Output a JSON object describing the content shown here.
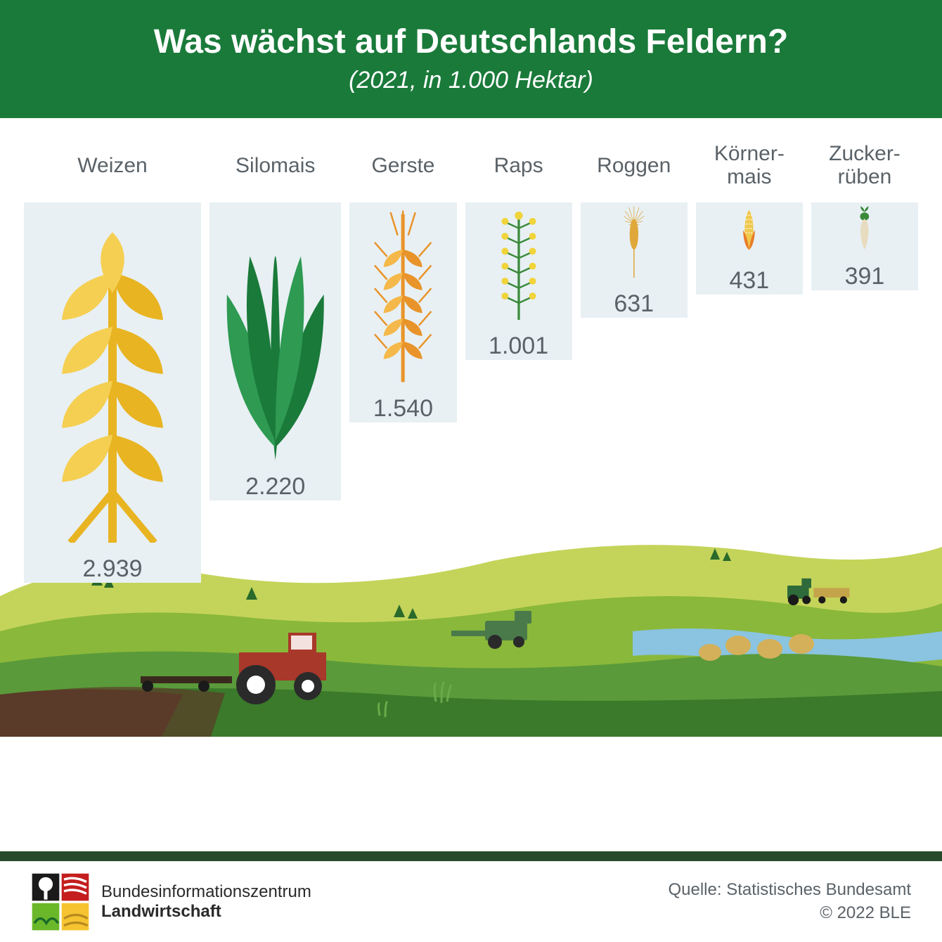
{
  "header": {
    "title": "Was wächst auf Deutschlands Feldern?",
    "subtitle": "(2021, in 1.000 Hektar)",
    "bg_color": "#1a7a3a",
    "text_color": "#ffffff",
    "title_fontsize": 48,
    "subtitle_fontsize": 34
  },
  "chart": {
    "type": "pictogram-bar",
    "bar_bg_color": "#e8f0f4",
    "label_color": "#5a6268",
    "value_color": "#5a6268",
    "label_fontsize": 30,
    "value_fontsize": 34,
    "max_value": 2939,
    "max_icon_height": 480,
    "crops": [
      {
        "name": "Weizen",
        "value": 2939,
        "value_str": "2.939",
        "icon": "wheat",
        "colors": [
          "#e8b422",
          "#f5cf52"
        ]
      },
      {
        "name": "Silomais",
        "value": 2220,
        "value_str": "2.220",
        "icon": "corn-husk",
        "colors": [
          "#1a7a3a",
          "#2e9a52"
        ]
      },
      {
        "name": "Gerste",
        "value": 1540,
        "value_str": "1.540",
        "icon": "barley",
        "colors": [
          "#e8942a",
          "#f5b84a"
        ]
      },
      {
        "name": "Raps",
        "value": 1001,
        "value_str": "1.001",
        "icon": "rapeseed",
        "colors": [
          "#3a8a3a",
          "#f0d43a"
        ]
      },
      {
        "name": "Roggen",
        "value": 631,
        "value_str": "631",
        "icon": "rye",
        "colors": [
          "#e0a83a"
        ]
      },
      {
        "name": "Körner-\nmais",
        "value": 431,
        "value_str": "431",
        "icon": "corn-cob",
        "colors": [
          "#f0c84a",
          "#e87a2a"
        ]
      },
      {
        "name": "Zucker-\nrüben",
        "value": 391,
        "value_str": "391",
        "icon": "beet",
        "colors": [
          "#3a8a3a",
          "#e8dcc0"
        ]
      }
    ]
  },
  "landscape": {
    "sky": "#e8f0f4",
    "hill_far": "#c4d45a",
    "hill_mid": "#8ab83a",
    "hill_near": "#5a9a3a",
    "field_dark": "#3a7a2a",
    "soil": "#5a3a28",
    "water": "#8ac4e0",
    "tractor_body": "#a8382a",
    "tractor_wheel": "#2a2a2a",
    "tractor_hub": "#ffffff",
    "harvester": "#4a7a4a",
    "hay": "#d4b05a",
    "tree": "#2a6a2a"
  },
  "footer": {
    "org_line1": "Bundesinformationszentrum",
    "org_line2": "Landwirtschaft",
    "source": "Quelle: Statistisches Bundesamt",
    "copyright": "© 2022 BLE",
    "text_color": "#5a6268",
    "logo_colors": {
      "tl": "#1a1a1a",
      "tr": "#c41e1e",
      "bl": "#6ab82a",
      "br": "#f5c430",
      "tree": "#ffffff"
    }
  }
}
